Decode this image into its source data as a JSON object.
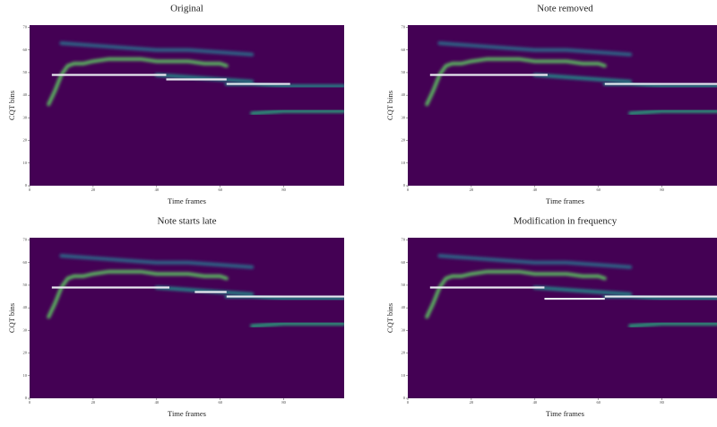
{
  "chart_data": [
    {
      "type": "spectrogram",
      "title": "Original",
      "xlabel": "Time frames",
      "ylabel": "CQT bins",
      "xlim": [
        0,
        99
      ],
      "ylim": [
        0,
        71
      ],
      "xticks": [
        0,
        20,
        40,
        60,
        80
      ],
      "yticks": [
        0,
        10,
        20,
        30,
        40,
        50,
        60,
        70
      ],
      "background": "#440154",
      "note_color": "#e8e8f0",
      "notes": [
        {
          "start": 7,
          "end": 43,
          "pitch": 49
        },
        {
          "start": 43,
          "end": 62,
          "pitch": 47
        },
        {
          "start": 62,
          "end": 82,
          "pitch": 45
        }
      ],
      "ridges": [
        {
          "x": [
            6,
            8,
            10,
            12,
            14,
            17,
            20,
            25,
            30,
            35,
            40,
            45,
            50,
            55,
            60,
            62
          ],
          "y": [
            36,
            42,
            49,
            53,
            54,
            54,
            55,
            56,
            56,
            56,
            55,
            55,
            55,
            54,
            54,
            53
          ],
          "color": "#5ec962"
        },
        {
          "x": [
            10,
            20,
            30,
            40,
            50,
            60,
            70
          ],
          "y": [
            63,
            62,
            61,
            60,
            60,
            59,
            58
          ],
          "color": "#2c728e"
        },
        {
          "x": [
            40,
            50,
            60,
            70
          ],
          "y": [
            49,
            48,
            47,
            46
          ],
          "color": "#21918c"
        },
        {
          "x": [
            62,
            70,
            80,
            90,
            99
          ],
          "y": [
            45,
            45,
            44,
            44,
            44
          ],
          "color": "#21918c"
        },
        {
          "x": [
            70,
            80,
            90,
            99
          ],
          "y": [
            32,
            33,
            33,
            33
          ],
          "color": "#28ae80"
        }
      ]
    },
    {
      "type": "spectrogram",
      "title": "Note removed",
      "xlabel": "Time frames",
      "ylabel": "CQT bins",
      "xlim": [
        0,
        99
      ],
      "ylim": [
        0,
        71
      ],
      "xticks": [
        0,
        20,
        40,
        60,
        80
      ],
      "yticks": [
        0,
        10,
        20,
        30,
        40,
        50,
        60,
        70
      ],
      "background": "#440154",
      "note_color": "#e8e8f0",
      "notes": [
        {
          "start": 7,
          "end": 44,
          "pitch": 49
        },
        {
          "start": 62,
          "end": 99,
          "pitch": 45
        }
      ],
      "ridges": [
        {
          "x": [
            6,
            8,
            10,
            12,
            14,
            17,
            20,
            25,
            30,
            35,
            40,
            45,
            50,
            55,
            60,
            62
          ],
          "y": [
            36,
            42,
            49,
            53,
            54,
            54,
            55,
            56,
            56,
            56,
            55,
            55,
            55,
            54,
            54,
            53
          ],
          "color": "#5ec962"
        },
        {
          "x": [
            10,
            20,
            30,
            40,
            50,
            60,
            70
          ],
          "y": [
            63,
            62,
            61,
            60,
            60,
            59,
            58
          ],
          "color": "#2c728e"
        },
        {
          "x": [
            40,
            50,
            60,
            70
          ],
          "y": [
            49,
            48,
            47,
            46
          ],
          "color": "#21918c"
        },
        {
          "x": [
            62,
            70,
            80,
            90,
            99
          ],
          "y": [
            45,
            45,
            44,
            44,
            44
          ],
          "color": "#21918c"
        },
        {
          "x": [
            70,
            80,
            90,
            99
          ],
          "y": [
            32,
            33,
            33,
            33
          ],
          "color": "#28ae80"
        }
      ]
    },
    {
      "type": "spectrogram",
      "title": "Note starts late",
      "xlabel": "Time frames",
      "ylabel": "CQT bins",
      "xlim": [
        0,
        99
      ],
      "ylim": [
        0,
        71
      ],
      "xticks": [
        0,
        20,
        40,
        60,
        80
      ],
      "yticks": [
        0,
        10,
        20,
        30,
        40,
        50,
        60,
        70
      ],
      "background": "#440154",
      "note_color": "#e8e8f0",
      "notes": [
        {
          "start": 7,
          "end": 44,
          "pitch": 49
        },
        {
          "start": 52,
          "end": 62,
          "pitch": 47
        },
        {
          "start": 62,
          "end": 99,
          "pitch": 45
        }
      ],
      "ridges": [
        {
          "x": [
            6,
            8,
            10,
            12,
            14,
            17,
            20,
            25,
            30,
            35,
            40,
            45,
            50,
            55,
            60,
            62
          ],
          "y": [
            36,
            42,
            49,
            53,
            54,
            54,
            55,
            56,
            56,
            56,
            55,
            55,
            55,
            54,
            54,
            53
          ],
          "color": "#5ec962"
        },
        {
          "x": [
            10,
            20,
            30,
            40,
            50,
            60,
            70
          ],
          "y": [
            63,
            62,
            61,
            60,
            60,
            59,
            58
          ],
          "color": "#2c728e"
        },
        {
          "x": [
            40,
            50,
            60,
            70
          ],
          "y": [
            49,
            48,
            47,
            46
          ],
          "color": "#21918c"
        },
        {
          "x": [
            62,
            70,
            80,
            90,
            99
          ],
          "y": [
            45,
            45,
            44,
            44,
            44
          ],
          "color": "#21918c"
        },
        {
          "x": [
            70,
            80,
            90,
            99
          ],
          "y": [
            32,
            33,
            33,
            33
          ],
          "color": "#28ae80"
        }
      ]
    },
    {
      "type": "spectrogram",
      "title": "Modification in frequency",
      "xlabel": "Time frames",
      "ylabel": "CQT bins",
      "xlim": [
        0,
        99
      ],
      "ylim": [
        0,
        71
      ],
      "xticks": [
        0,
        20,
        40,
        60,
        80
      ],
      "yticks": [
        0,
        10,
        20,
        30,
        40,
        50,
        60,
        70
      ],
      "background": "#440154",
      "note_color": "#e8e8f0",
      "notes": [
        {
          "start": 7,
          "end": 43,
          "pitch": 49
        },
        {
          "start": 43,
          "end": 62,
          "pitch": 44
        },
        {
          "start": 62,
          "end": 99,
          "pitch": 45
        }
      ],
      "ridges": [
        {
          "x": [
            6,
            8,
            10,
            12,
            14,
            17,
            20,
            25,
            30,
            35,
            40,
            45,
            50,
            55,
            60,
            62
          ],
          "y": [
            36,
            42,
            49,
            53,
            54,
            54,
            55,
            56,
            56,
            56,
            55,
            55,
            55,
            54,
            54,
            53
          ],
          "color": "#5ec962"
        },
        {
          "x": [
            10,
            20,
            30,
            40,
            50,
            60,
            70
          ],
          "y": [
            63,
            62,
            61,
            60,
            60,
            59,
            58
          ],
          "color": "#2c728e"
        },
        {
          "x": [
            40,
            50,
            60,
            70
          ],
          "y": [
            49,
            48,
            47,
            46
          ],
          "color": "#21918c"
        },
        {
          "x": [
            62,
            70,
            80,
            90,
            99
          ],
          "y": [
            45,
            45,
            44,
            44,
            44
          ],
          "color": "#21918c"
        },
        {
          "x": [
            70,
            80,
            90,
            99
          ],
          "y": [
            32,
            33,
            33,
            33
          ],
          "color": "#28ae80"
        }
      ]
    }
  ]
}
